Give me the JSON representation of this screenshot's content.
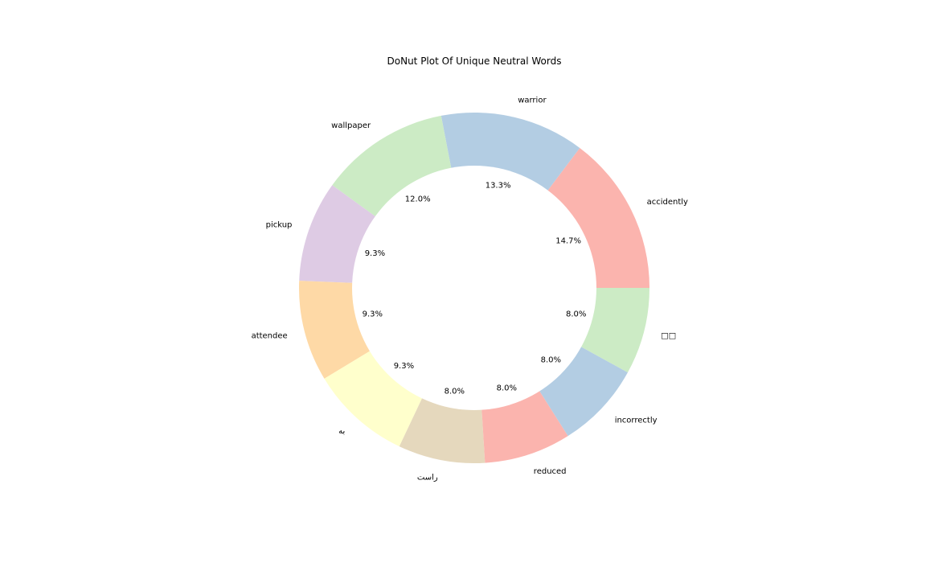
{
  "chart_data": {
    "type": "pie",
    "variant": "donut",
    "title": "DoNut Plot Of Unique Neutral Words",
    "start_angle_deg": 0,
    "direction": "counterclockwise",
    "slices": [
      {
        "label": "accidently",
        "value": 14.7,
        "pct_label": "14.7%",
        "color": "#fbb4ae"
      },
      {
        "label": "warrior",
        "value": 13.3,
        "pct_label": "13.3%",
        "color": "#b3cde3"
      },
      {
        "label": "wallpaper",
        "value": 12.0,
        "pct_label": "12.0%",
        "color": "#ccebc5"
      },
      {
        "label": "pickup",
        "value": 9.3,
        "pct_label": "9.3%",
        "color": "#decbe4"
      },
      {
        "label": "attendee",
        "value": 9.3,
        "pct_label": "9.3%",
        "color": "#fed9a6"
      },
      {
        "label": "به",
        "value": 9.3,
        "pct_label": "9.3%",
        "color": "#ffffcc"
      },
      {
        "label": "راست",
        "value": 8.0,
        "pct_label": "8.0%",
        "color": "#e5d8bd"
      },
      {
        "label": "reduced",
        "value": 8.0,
        "pct_label": "8.0%",
        "color": "#fbb4ae"
      },
      {
        "label": "incorrectly",
        "value": 8.0,
        "pct_label": "8.0%",
        "color": "#b3cde3"
      },
      {
        "label": "□□",
        "value": 8.0,
        "pct_label": "8.0%",
        "color": "#ccebc5"
      }
    ]
  }
}
